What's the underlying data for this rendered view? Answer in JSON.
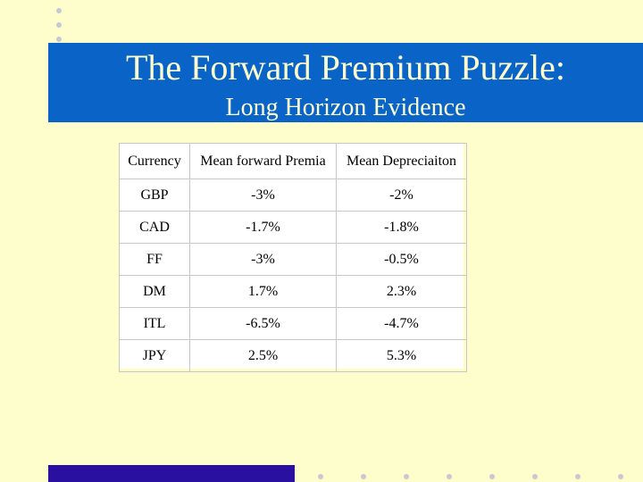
{
  "slide": {
    "title": "The Forward Premium Puzzle:",
    "subtitle": "Long Horizon Evidence"
  },
  "table": {
    "headers": [
      "Currency",
      "Mean forward  Premia",
      "Mean Depreciaiton"
    ],
    "rows": [
      [
        "GBP",
        "-3%",
        "-2%"
      ],
      [
        "CAD",
        "-1.7%",
        "-1.8%"
      ],
      [
        "FF",
        "-3%",
        "-0.5%"
      ],
      [
        "DM",
        "1.7%",
        "2.3%"
      ],
      [
        "ITL",
        "-6.5%",
        "-4.7%"
      ],
      [
        "JPY",
        "2.5%",
        "5.3%"
      ]
    ]
  },
  "colors": {
    "background": "#fefdcc",
    "title_band": "#0a64c8",
    "footer_bar": "#2a10a0",
    "bullet_dots": "#c8c8d4"
  }
}
